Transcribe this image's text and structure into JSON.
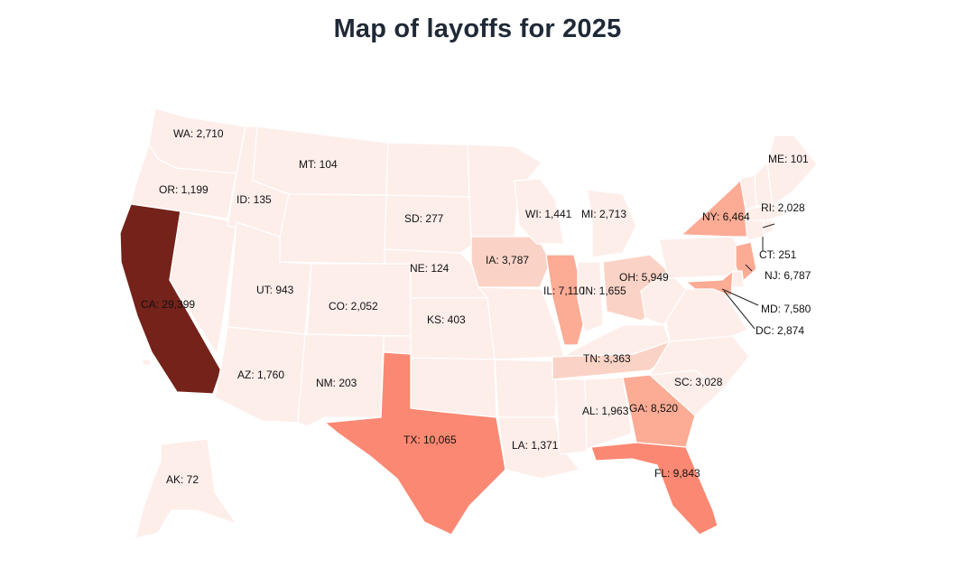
{
  "title": "Map of layoffs for 2025",
  "colors": {
    "c0": "#fdeeea",
    "c1": "#fbd3c6",
    "c2": "#fcab95",
    "c3": "#fb8872",
    "c4": "#74221a"
  },
  "chart_data": {
    "type": "choropleth",
    "title": "Map of layoffs for 2025",
    "regions": [
      {
        "id": "WA",
        "label": "WA: 2,710",
        "value": 2710
      },
      {
        "id": "OR",
        "label": "OR: 1,199",
        "value": 1199
      },
      {
        "id": "CA",
        "label": "CA: 29,399",
        "value": 29399
      },
      {
        "id": "ID",
        "label": "ID: 135",
        "value": 135
      },
      {
        "id": "MT",
        "label": "MT: 104",
        "value": 104
      },
      {
        "id": "UT",
        "label": "UT: 943",
        "value": 943
      },
      {
        "id": "AZ",
        "label": "AZ: 1,760",
        "value": 1760
      },
      {
        "id": "CO",
        "label": "CO: 2,052",
        "value": 2052
      },
      {
        "id": "NM",
        "label": "NM: 203",
        "value": 203
      },
      {
        "id": "SD",
        "label": "SD: 277",
        "value": 277
      },
      {
        "id": "NE",
        "label": "NE: 124",
        "value": 124
      },
      {
        "id": "KS",
        "label": "KS: 403",
        "value": 403
      },
      {
        "id": "TX",
        "label": "TX: 10,065",
        "value": 10065
      },
      {
        "id": "IA",
        "label": "IA: 3,787",
        "value": 3787
      },
      {
        "id": "WI",
        "label": "WI: 1,441",
        "value": 1441
      },
      {
        "id": "MI",
        "label": "MI: 2,713",
        "value": 2713
      },
      {
        "id": "IL",
        "label": "IL: 7,110",
        "value": 7110
      },
      {
        "id": "IN",
        "label": "IN: 1,655",
        "value": 1655
      },
      {
        "id": "OH",
        "label": "OH: 5,949",
        "value": 5949
      },
      {
        "id": "LA",
        "label": "LA: 1,371",
        "value": 1371
      },
      {
        "id": "TN",
        "label": "TN: 3,363",
        "value": 3363
      },
      {
        "id": "AL",
        "label": "AL: 1,963",
        "value": 1963
      },
      {
        "id": "GA",
        "label": "GA: 8,520",
        "value": 8520
      },
      {
        "id": "FL",
        "label": "FL: 9,843",
        "value": 9843
      },
      {
        "id": "SC",
        "label": "SC: 3,028",
        "value": 3028
      },
      {
        "id": "NY",
        "label": "NY: 6,464",
        "value": 6464
      },
      {
        "id": "ME",
        "label": "ME: 101",
        "value": 101
      },
      {
        "id": "RI",
        "label": "RI: 2,028",
        "value": 2028
      },
      {
        "id": "CT",
        "label": "CT: 251",
        "value": 251
      },
      {
        "id": "NJ",
        "label": "NJ: 6,787",
        "value": 6787
      },
      {
        "id": "MD",
        "label": "MD: 7,580",
        "value": 7580
      },
      {
        "id": "DC",
        "label": "DC: 2,874",
        "value": 2874
      },
      {
        "id": "AK",
        "label": "AK: 72",
        "value": 72
      }
    ]
  }
}
